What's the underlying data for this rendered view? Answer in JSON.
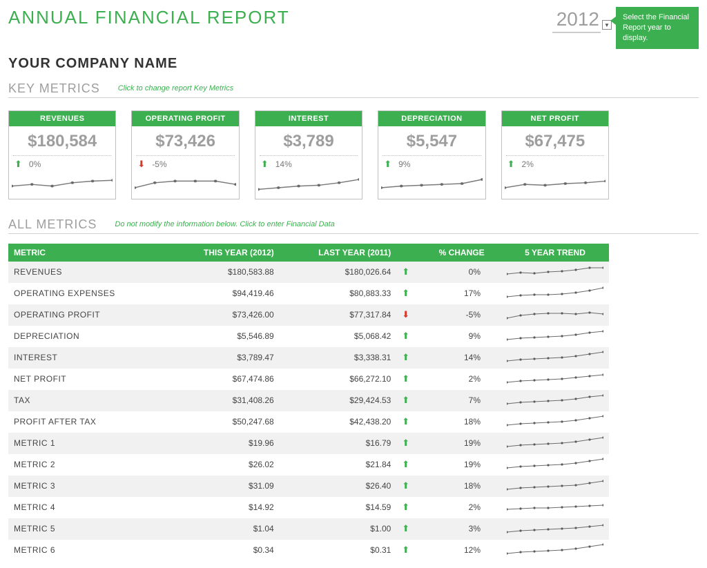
{
  "header": {
    "title": "ANNUAL FINANCIAL REPORT",
    "company": "YOUR COMPANY NAME",
    "year": "2012",
    "callout": "Select the Financial Report year to display."
  },
  "colors": {
    "accent": "#3cb050",
    "muted": "#9e9e9e",
    "border": "#bfbfbf",
    "row_alt": "#f1f1f1",
    "down": "#d63a2a"
  },
  "key_metrics": {
    "section_title": "KEY METRICS",
    "hint": "Click to change report Key Metrics",
    "cards": [
      {
        "label": "REVENUES",
        "value": "$180,584",
        "change": "0%",
        "dir": "up",
        "spark": [
          18,
          16,
          18,
          14,
          12,
          11
        ]
      },
      {
        "label": "OPERATING PROFIT",
        "value": "$73,426",
        "change": "-5%",
        "dir": "down",
        "spark": [
          20,
          14,
          12,
          12,
          12,
          16
        ]
      },
      {
        "label": "INTEREST",
        "value": "$3,789",
        "change": "14%",
        "dir": "up",
        "spark": [
          22,
          20,
          18,
          17,
          14,
          10
        ]
      },
      {
        "label": "DEPRECIATION",
        "value": "$5,547",
        "change": "9%",
        "dir": "up",
        "spark": [
          20,
          18,
          17,
          16,
          15,
          10
        ]
      },
      {
        "label": "NET PROFIT",
        "value": "$67,475",
        "change": "2%",
        "dir": "up",
        "spark": [
          20,
          16,
          17,
          15,
          14,
          12
        ]
      }
    ]
  },
  "all_metrics": {
    "section_title": "ALL METRICS",
    "hint": "Do not modify the information below. Click to enter Financial Data",
    "columns": {
      "metric": "METRIC",
      "this_year": "THIS YEAR (2012)",
      "last_year": "LAST YEAR (2011)",
      "pct_change": "% CHANGE",
      "trend": "5 YEAR TREND"
    },
    "rows": [
      {
        "metric": "REVENUES",
        "this_year": "$180,583.88",
        "last_year": "$180,026.64",
        "dir": "up",
        "pct": "0%",
        "spark": [
          14,
          12,
          13,
          11,
          10,
          8,
          5,
          5
        ]
      },
      {
        "metric": "OPERATING EXPENSES",
        "this_year": "$94,419.46",
        "last_year": "$80,883.33",
        "dir": "up",
        "pct": "17%",
        "spark": [
          16,
          14,
          13,
          13,
          12,
          10,
          7,
          3
        ]
      },
      {
        "metric": "OPERATING PROFIT",
        "this_year": "$73,426.00",
        "last_year": "$77,317.84",
        "dir": "down",
        "pct": "-5%",
        "spark": [
          16,
          12,
          10,
          9,
          9,
          10,
          8,
          10
        ]
      },
      {
        "metric": "DEPRECIATION",
        "this_year": "$5,546.89",
        "last_year": "$5,068.42",
        "dir": "up",
        "pct": "9%",
        "spark": [
          16,
          14,
          13,
          12,
          11,
          9,
          6,
          4
        ]
      },
      {
        "metric": "INTEREST",
        "this_year": "$3,789.47",
        "last_year": "$3,338.31",
        "dir": "up",
        "pct": "14%",
        "spark": [
          16,
          14,
          13,
          12,
          11,
          9,
          6,
          3
        ]
      },
      {
        "metric": "NET PROFIT",
        "this_year": "$67,474.86",
        "last_year": "$66,272.10",
        "dir": "up",
        "pct": "2%",
        "spark": [
          16,
          14,
          13,
          12,
          11,
          9,
          7,
          5
        ]
      },
      {
        "metric": "TAX",
        "this_year": "$31,408.26",
        "last_year": "$29,424.53",
        "dir": "up",
        "pct": "7%",
        "spark": [
          16,
          14,
          13,
          12,
          11,
          9,
          6,
          4
        ]
      },
      {
        "metric": "PROFIT AFTER TAX",
        "this_year": "$50,247.68",
        "last_year": "$42,438.20",
        "dir": "up",
        "pct": "18%",
        "spark": [
          16,
          14,
          13,
          12,
          11,
          9,
          6,
          3
        ]
      },
      {
        "metric": "METRIC 1",
        "this_year": "$19.96",
        "last_year": "$16.79",
        "dir": "up",
        "pct": "19%",
        "spark": [
          16,
          14,
          13,
          12,
          11,
          9,
          6,
          3
        ]
      },
      {
        "metric": "METRIC 2",
        "this_year": "$26.02",
        "last_year": "$21.84",
        "dir": "up",
        "pct": "19%",
        "spark": [
          16,
          14,
          13,
          12,
          11,
          9,
          6,
          3
        ]
      },
      {
        "metric": "METRIC 3",
        "this_year": "$31.09",
        "last_year": "$26.40",
        "dir": "up",
        "pct": "18%",
        "spark": [
          16,
          14,
          13,
          12,
          11,
          10,
          7,
          4
        ]
      },
      {
        "metric": "METRIC 4",
        "this_year": "$14.92",
        "last_year": "$14.59",
        "dir": "up",
        "pct": "2%",
        "spark": [
          14,
          13,
          12,
          12,
          11,
          10,
          9,
          8
        ]
      },
      {
        "metric": "METRIC 5",
        "this_year": "$1.04",
        "last_year": "$1.00",
        "dir": "up",
        "pct": "3%",
        "spark": [
          16,
          14,
          13,
          12,
          11,
          10,
          8,
          6
        ]
      },
      {
        "metric": "METRIC 6",
        "this_year": "$0.34",
        "last_year": "$0.31",
        "dir": "up",
        "pct": "12%",
        "spark": [
          16,
          14,
          13,
          12,
          11,
          9,
          6,
          3
        ]
      }
    ]
  }
}
